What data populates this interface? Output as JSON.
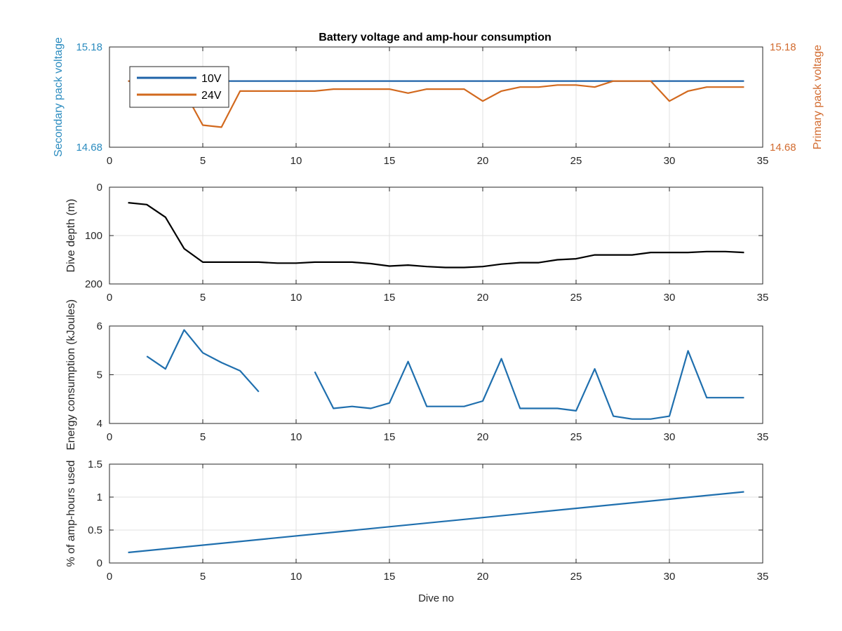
{
  "figure": {
    "title": "Battery voltage and amp-hour consumption"
  },
  "chart_data": [
    {
      "type": "line",
      "title": "Battery voltage and amp-hour consumption",
      "xlabel": "",
      "ylabel": "Secondary pack voltage",
      "y2label": "Primary pack voltage",
      "xlim": [
        0,
        35
      ],
      "ylim": [
        14.68,
        15.18
      ],
      "y2lim": [
        14.68,
        15.18
      ],
      "xticks": [
        "0",
        "5",
        "10",
        "15",
        "20",
        "25",
        "30",
        "35"
      ],
      "yticks": [
        "14.68",
        "15.18"
      ],
      "y2ticks": [
        "14.68",
        "15.18"
      ],
      "ylabel_color": "#2a8bbf",
      "y2label_color": "#d26b2f",
      "grid": true,
      "legend": {
        "placement": "top-left",
        "entries": [
          "10V",
          "24V"
        ]
      },
      "series": [
        {
          "name": "10V",
          "color": "#1f63a8",
          "axis": "left",
          "x": [
            1,
            34
          ],
          "y": [
            15.01,
            15.01
          ]
        },
        {
          "name": "24V",
          "color": "#d2691e",
          "axis": "right",
          "x": [
            1,
            2,
            3,
            4,
            5,
            6,
            7,
            8,
            9,
            10,
            11,
            12,
            13,
            14,
            15,
            16,
            17,
            18,
            19,
            20,
            21,
            22,
            23,
            24,
            25,
            26,
            27,
            28,
            29,
            30,
            31,
            32,
            33,
            34
          ],
          "y": [
            15.01,
            15.01,
            15.01,
            14.96,
            14.79,
            14.78,
            14.96,
            14.96,
            14.96,
            14.96,
            14.96,
            14.97,
            14.97,
            14.97,
            14.97,
            14.95,
            14.97,
            14.97,
            14.97,
            14.91,
            14.96,
            14.98,
            14.98,
            14.99,
            14.99,
            14.98,
            15.01,
            15.01,
            15.01,
            14.91,
            14.96,
            14.98,
            14.98,
            14.98
          ]
        }
      ]
    },
    {
      "type": "line",
      "title": "",
      "xlabel": "",
      "ylabel": "Dive depth (m)",
      "xlim": [
        0,
        35
      ],
      "ylim": [
        0,
        200
      ],
      "y_reversed": true,
      "xticks": [
        "0",
        "5",
        "10",
        "15",
        "20",
        "25",
        "30",
        "35"
      ],
      "yticks": [
        "0",
        "100",
        "200"
      ],
      "grid": true,
      "series": [
        {
          "color": "#000000",
          "x": [
            1,
            2,
            3,
            4,
            5,
            6,
            7,
            8,
            9,
            10,
            11,
            12,
            13,
            14,
            15,
            16,
            17,
            18,
            19,
            20,
            21,
            22,
            23,
            24,
            25,
            26,
            27,
            28,
            29,
            30,
            31,
            32,
            33,
            34
          ],
          "y": [
            32,
            36,
            62,
            127,
            155,
            155,
            155,
            155,
            157,
            157,
            155,
            155,
            155,
            158,
            163,
            161,
            164,
            166,
            166,
            164,
            159,
            156,
            156,
            150,
            148,
            140,
            140,
            140,
            135,
            135,
            135,
            133,
            133,
            135
          ]
        }
      ]
    },
    {
      "type": "line",
      "title": "",
      "xlabel": "",
      "ylabel": "Energy consumption (kJoules)",
      "xlim": [
        0,
        35
      ],
      "ylim": [
        4,
        6
      ],
      "xticks": [
        "0",
        "5",
        "10",
        "15",
        "20",
        "25",
        "30",
        "35"
      ],
      "yticks": [
        "4",
        "5",
        "6"
      ],
      "grid": true,
      "series": [
        {
          "color": "#1f6fae",
          "x": [
            2,
            3,
            4,
            5,
            6,
            7,
            8,
            null,
            11,
            12,
            13,
            14,
            15,
            16,
            17,
            18,
            19,
            20,
            21,
            22,
            23,
            24,
            25,
            26,
            27,
            28,
            29,
            30,
            31,
            32,
            33,
            34
          ],
          "y": [
            5.38,
            5.12,
            5.92,
            5.45,
            5.25,
            5.08,
            4.65,
            null,
            5.06,
            4.31,
            4.35,
            4.31,
            4.42,
            5.27,
            4.35,
            4.35,
            4.35,
            4.46,
            5.33,
            4.31,
            4.31,
            4.31,
            4.26,
            5.12,
            4.15,
            4.09,
            4.09,
            4.15,
            5.49,
            4.53,
            4.53,
            4.53
          ]
        }
      ]
    },
    {
      "type": "line",
      "title": "",
      "xlabel": "Dive no",
      "ylabel": "% of amp-hours used",
      "xlim": [
        0,
        35
      ],
      "ylim": [
        0,
        1.5
      ],
      "xticks": [
        "0",
        "5",
        "10",
        "15",
        "20",
        "25",
        "30",
        "35"
      ],
      "yticks": [
        "0",
        "0.5",
        "1",
        "1.5"
      ],
      "grid": true,
      "series": [
        {
          "color": "#1f6fae",
          "x": [
            1,
            34
          ],
          "y": [
            0.16,
            1.08
          ]
        }
      ]
    }
  ]
}
